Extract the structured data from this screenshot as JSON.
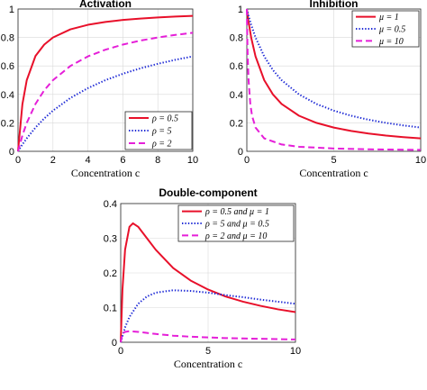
{
  "chart_data": [
    {
      "type": "line",
      "title": "Activation",
      "xlabel": "Concentration c",
      "ylabel": "",
      "xlim": [
        0,
        10
      ],
      "ylim": [
        0,
        1
      ],
      "xticks": [
        "0",
        "2",
        "4",
        "6",
        "8",
        "10"
      ],
      "yticks": [
        "0",
        "0.2",
        "0.4",
        "0.6",
        "0.8",
        "1"
      ],
      "grid": true,
      "legend_position": "bottom-right",
      "series": [
        {
          "name": "ρ = 0.5",
          "color": "#e8102a",
          "style": "solid",
          "x": [
            0,
            0.25,
            0.5,
            1,
            1.5,
            2,
            3,
            4,
            5,
            6,
            7,
            8,
            9,
            10
          ],
          "y": [
            0,
            0.33,
            0.5,
            0.67,
            0.75,
            0.8,
            0.857,
            0.889,
            0.909,
            0.923,
            0.933,
            0.941,
            0.947,
            0.952
          ]
        },
        {
          "name": "ρ = 5",
          "color": "#1f2bd6",
          "style": "dotted",
          "x": [
            0,
            0.25,
            0.5,
            1,
            1.5,
            2,
            3,
            4,
            5,
            6,
            7,
            8,
            9,
            10
          ],
          "y": [
            0,
            0.048,
            0.091,
            0.167,
            0.231,
            0.286,
            0.375,
            0.444,
            0.5,
            0.545,
            0.583,
            0.615,
            0.643,
            0.667
          ]
        },
        {
          "name": "ρ = 2",
          "color": "#e51fd8",
          "style": "dashed",
          "x": [
            0,
            0.25,
            0.5,
            1,
            1.5,
            2,
            3,
            4,
            5,
            6,
            7,
            8,
            9,
            10
          ],
          "y": [
            0,
            0.111,
            0.2,
            0.333,
            0.429,
            0.5,
            0.6,
            0.667,
            0.714,
            0.75,
            0.778,
            0.8,
            0.818,
            0.833
          ]
        }
      ]
    },
    {
      "type": "line",
      "title": "Inhibition",
      "xlabel": "Concentration c",
      "ylabel": "",
      "xlim": [
        0,
        10
      ],
      "ylim": [
        0,
        1
      ],
      "xticks": [
        "0",
        "5",
        "10"
      ],
      "yticks": [
        "0",
        "0.2",
        "0.4",
        "0.6",
        "0.8",
        "1"
      ],
      "grid": true,
      "legend_position": "top-right",
      "series": [
        {
          "name": "μ = 1",
          "color": "#e8102a",
          "style": "solid",
          "x": [
            0,
            0.1,
            0.25,
            0.5,
            1,
            1.5,
            2,
            3,
            4,
            5,
            6,
            7,
            8,
            9,
            10
          ],
          "y": [
            1,
            0.909,
            0.8,
            0.667,
            0.5,
            0.4,
            0.333,
            0.25,
            0.2,
            0.167,
            0.143,
            0.125,
            0.111,
            0.1,
            0.091
          ]
        },
        {
          "name": "μ = 0.5",
          "color": "#1f2bd6",
          "style": "dotted",
          "x": [
            0,
            0.1,
            0.25,
            0.5,
            1,
            1.5,
            2,
            3,
            4,
            5,
            6,
            7,
            8,
            9,
            10
          ],
          "y": [
            1,
            0.952,
            0.889,
            0.8,
            0.667,
            0.571,
            0.5,
            0.4,
            0.333,
            0.286,
            0.25,
            0.222,
            0.2,
            0.182,
            0.167
          ]
        },
        {
          "name": "μ = 10",
          "color": "#e51fd8",
          "style": "dashed",
          "x": [
            0,
            0.02,
            0.05,
            0.1,
            0.2,
            0.3,
            0.5,
            1,
            2,
            3,
            5,
            7,
            10
          ],
          "y": [
            1,
            0.833,
            0.667,
            0.5,
            0.333,
            0.25,
            0.167,
            0.091,
            0.048,
            0.032,
            0.02,
            0.014,
            0.01
          ]
        }
      ]
    },
    {
      "type": "line",
      "title": "Double-component",
      "xlabel": "Concentration c",
      "ylabel": "",
      "xlim": [
        0,
        10
      ],
      "ylim": [
        0,
        0.4
      ],
      "xticks": [
        "0",
        "5",
        "10"
      ],
      "yticks": [
        "0",
        "0.1",
        "0.2",
        "0.3",
        "0.4"
      ],
      "grid": true,
      "legend_position": "top-right",
      "series": [
        {
          "name": "ρ = 0.5 and μ = 1",
          "color": "#e8102a",
          "style": "solid",
          "x": [
            0,
            0.1,
            0.25,
            0.5,
            0.7,
            1,
            1.5,
            2,
            3,
            4,
            5,
            6,
            7,
            8,
            9,
            10
          ],
          "y": [
            0,
            0.152,
            0.267,
            0.333,
            0.343,
            0.333,
            0.3,
            0.267,
            0.214,
            0.178,
            0.152,
            0.132,
            0.117,
            0.105,
            0.095,
            0.087
          ]
        },
        {
          "name": "ρ = 5 and μ = 0.5",
          "color": "#1f2bd6",
          "style": "dotted",
          "x": [
            0,
            0.25,
            0.5,
            1,
            1.5,
            2,
            3,
            4,
            5,
            6,
            7,
            8,
            9,
            10
          ],
          "y": [
            0,
            0.043,
            0.073,
            0.111,
            0.132,
            0.143,
            0.15,
            0.148,
            0.143,
            0.136,
            0.13,
            0.123,
            0.117,
            0.111
          ]
        },
        {
          "name": "ρ = 2 and μ = 10",
          "color": "#e51fd8",
          "style": "dashed",
          "x": [
            0,
            0.1,
            0.25,
            0.5,
            1,
            2,
            3,
            4,
            5,
            6,
            7,
            8,
            9,
            10
          ],
          "y": [
            0,
            0.026,
            0.03,
            0.032,
            0.03,
            0.024,
            0.019,
            0.016,
            0.014,
            0.012,
            0.011,
            0.01,
            0.009,
            0.008
          ]
        }
      ]
    }
  ]
}
